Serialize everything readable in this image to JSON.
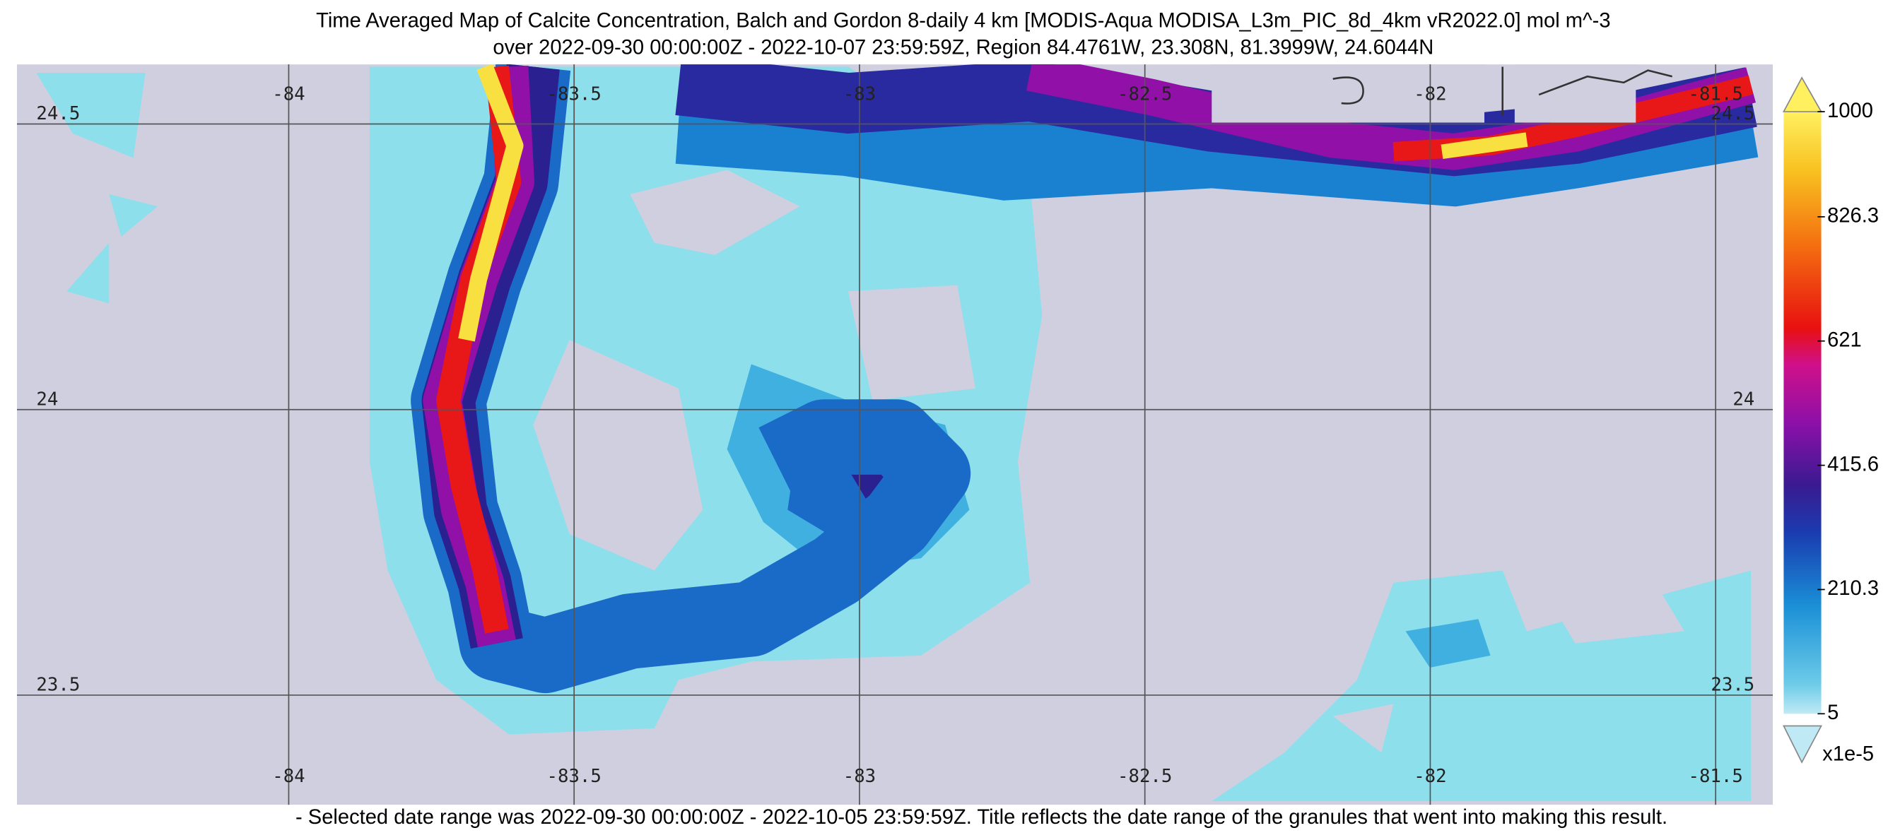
{
  "title": [
    "Time Averaged Map of Calcite Concentration, Balch and Gordon 8-daily 4 km [MODIS-Aqua MODISA_L3m_PIC_8d_4km vR2022.0] mol m^-3",
    "over 2022-09-30 00:00:00Z - 2022-10-07 23:59:59Z, Region 84.4761W, 23.308N, 81.3999W, 24.6044N"
  ],
  "map": {
    "lonlim": [
      -84.4761,
      -81.3999
    ],
    "latlim": [
      23.308,
      24.6044
    ],
    "lon_ticks": [
      -84,
      -83.5,
      -83,
      -82.5,
      -82,
      -81.5
    ],
    "lat_ticks": [
      24.5,
      24,
      23.5
    ]
  },
  "colorbar": {
    "range": [
      5,
      1000
    ],
    "ticks": [
      5,
      210.3,
      415.6,
      621,
      826.3,
      1000
    ],
    "unit": "x1e-5"
  },
  "footnote": "- Selected date range was 2022-09-30 00:00:00Z - 2022-10-05 23:59:59Z. Title reflects the date range of the granules that went into making this result."
}
